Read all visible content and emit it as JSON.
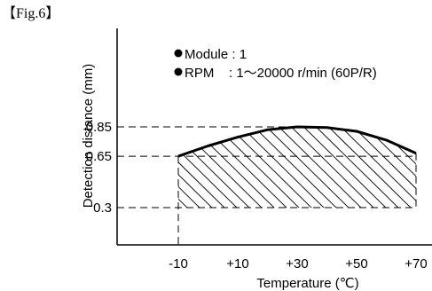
{
  "figure_label": "【Fig.6】",
  "chart_data": {
    "type": "area",
    "xlabel": "Temperature (℃)",
    "ylabel": "Detection distance (mm)",
    "x_ticks": [
      "-10",
      "+10",
      "+30",
      "+50",
      "+70"
    ],
    "x_tick_values": [
      -10,
      10,
      30,
      50,
      70
    ],
    "y_ticks": [
      "0.3",
      "0.65",
      "0.85"
    ],
    "y_tick_values": [
      0.3,
      0.65,
      0.85
    ],
    "xlim": [
      -10,
      70
    ],
    "legend": [
      "Module : 1",
      "RPM    : 1～20000 r/min (60P/R)"
    ],
    "lower_bound": 0.3,
    "upper_curve": {
      "x": [
        -10,
        0,
        10,
        20,
        30,
        40,
        50,
        60,
        70
      ],
      "y": [
        0.65,
        0.72,
        0.78,
        0.83,
        0.85,
        0.845,
        0.82,
        0.76,
        0.67
      ]
    },
    "fill": "hatched",
    "grid": false
  }
}
